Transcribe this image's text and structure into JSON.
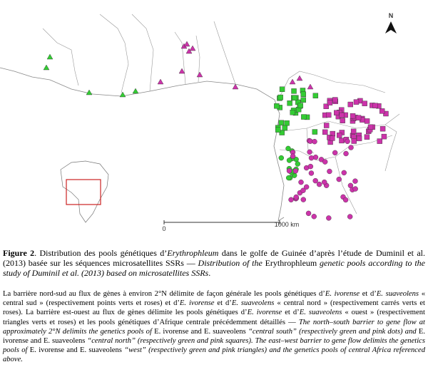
{
  "map": {
    "north": "N",
    "scale_start": "0",
    "scale_end": "1000 km"
  },
  "caption": [
    {
      "text": "Figure 2",
      "bold": true
    },
    {
      "text": ". Distribution des pools génétiques d’"
    },
    {
      "text": "Erythrophleum",
      "italic": true
    },
    {
      "text": " dans le golfe de Guinée d’après l’étude de Duminil et al. (2013) basée sur les séquences microsatellites SSRs — "
    },
    {
      "text": "Distribution of the",
      "italic": true
    },
    {
      "text": " Erythrophleum "
    },
    {
      "text": "genetic pools according to the study of Duminil et al. (2013) based on microsatellites SSRs",
      "italic": true
    },
    {
      "text": "."
    }
  ],
  "paragraph": [
    {
      "text": "La barrière nord-sud au flux de gènes à environ 2°N délimite de façon générale les pools génétiques d’"
    },
    {
      "text": "E. ivorense",
      "italic": true
    },
    {
      "text": " et d’"
    },
    {
      "text": "E. suaveolens",
      "italic": true
    },
    {
      "text": " « central sud » (respectivement points verts et roses) et d’"
    },
    {
      "text": "E. ivorense",
      "italic": true
    },
    {
      "text": " et d’"
    },
    {
      "text": "E. suaveolens",
      "italic": true
    },
    {
      "text": " « central nord » (respectivement carrés verts et roses). La barrière est-ouest au flux de gènes délimite les pools génétiques d’"
    },
    {
      "text": "E. ivorense",
      "italic": true
    },
    {
      "text": " et d’"
    },
    {
      "text": "E. suaveolens",
      "italic": true
    },
    {
      "text": " « ouest » (respectivement triangles verts et roses) et les pools génétiques d’Afrique centrale précédemment détaillés — "
    },
    {
      "text": "The north–south barrier to gene flow at approximately 2°N delimits the genetics pools of",
      "italic": true
    },
    {
      "text": " E. ivorense and E. suaveolens "
    },
    {
      "text": "“central south” (respectively green and pink dots) and",
      "italic": true
    },
    {
      "text": " E. ivorense and E. suaveolens "
    },
    {
      "text": "“central north” (respectively green and pink squares). The east–west barrier to gene flow delimits the genetics pools of",
      "italic": true
    },
    {
      "text": " E. ivorense and E. suaveolens "
    },
    {
      "text": "“west” (respectively green and pink triangles) and the genetics pools of central Africa referenced above.",
      "italic": true
    }
  ]
}
